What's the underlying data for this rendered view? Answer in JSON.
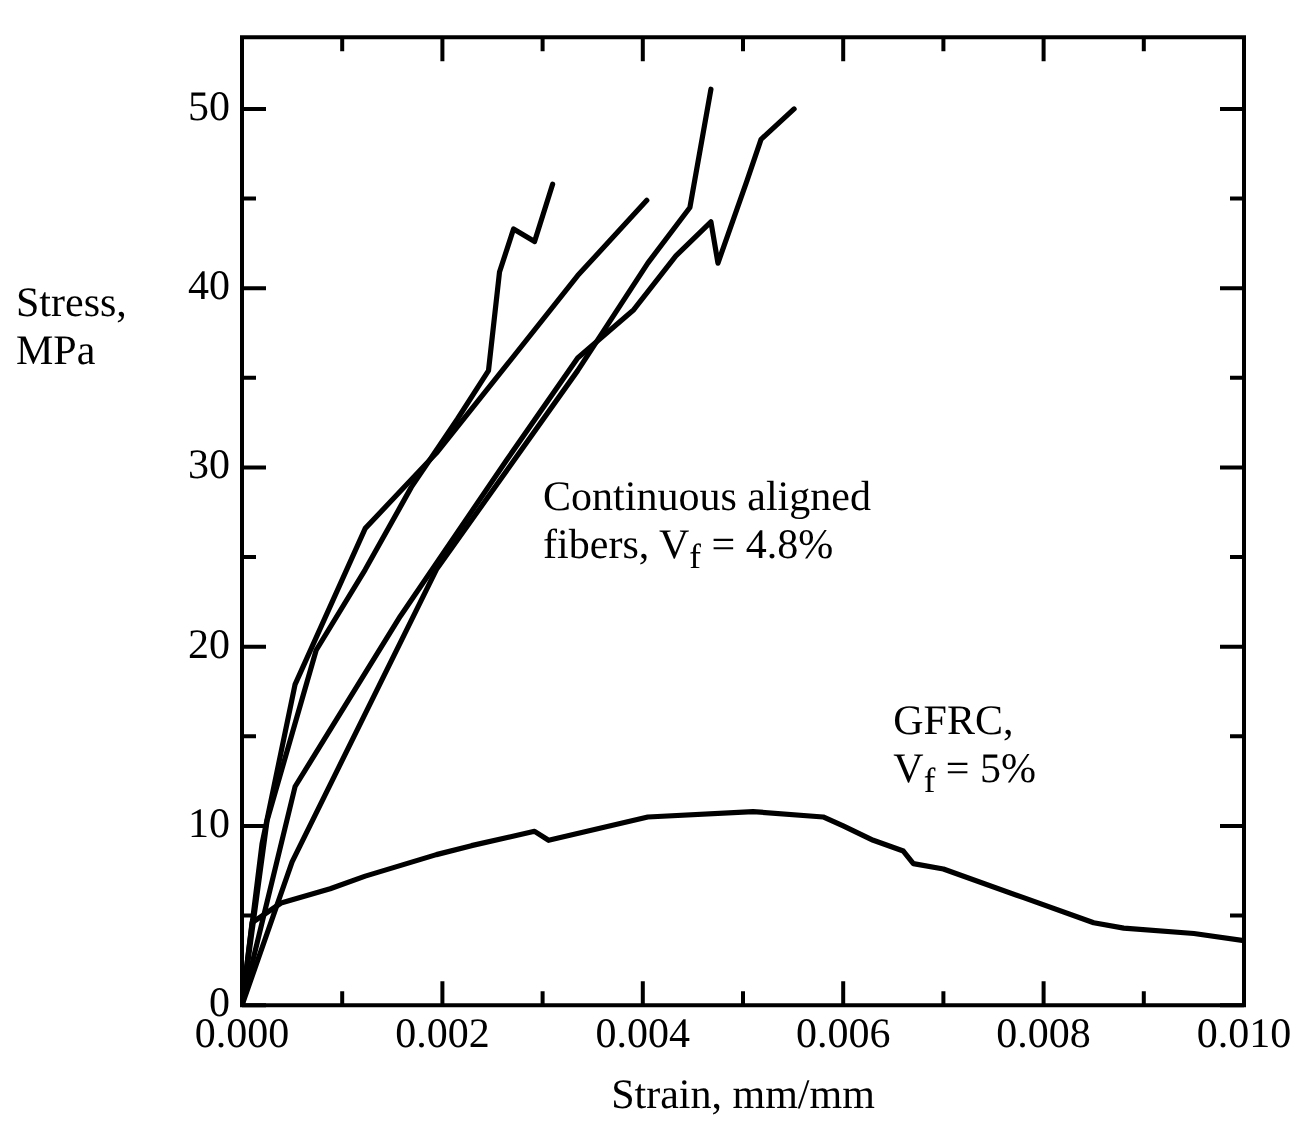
{
  "chart_data": {
    "type": "line",
    "xlabel": "Strain, mm/mm",
    "ylabel": "Stress, MPa",
    "annotations": [
      "Continuous aligned fibers, V$_{f}$ = 4.8%",
      "GFRC, V$_{f}$ = 5%"
    ],
    "xlim": [
      0,
      0.01
    ],
    "ylim": [
      0,
      54
    ],
    "xticks": [
      {
        "value": 0,
        "label": "0.000"
      },
      {
        "value": 0.001,
        "label": null
      },
      {
        "value": 0.002,
        "label": "0.002"
      },
      {
        "value": 0.003,
        "label": null
      },
      {
        "value": 0.004,
        "label": "0.004"
      },
      {
        "value": 0.005,
        "label": null
      },
      {
        "value": 0.006,
        "label": "0.006"
      },
      {
        "value": 0.007,
        "label": null
      },
      {
        "value": 0.008,
        "label": "0.008"
      },
      {
        "value": 0.009,
        "label": null
      },
      {
        "value": 0.01,
        "label": "0.010"
      }
    ],
    "yticks": [
      0,
      {
        "value": 5,
        "label": null
      },
      10,
      {
        "value": 15,
        "label": null
      },
      20,
      {
        "value": 25,
        "label": null
      },
      30,
      {
        "value": 35,
        "label": null
      },
      40,
      {
        "value": 45,
        "label": null
      },
      50
    ],
    "grid": false,
    "legend": false,
    "marker": "none",
    "line_style": "solid",
    "series": [
      {
        "color": "#000000",
        "x": [
          0,
          0.00025,
          0.00074,
          0.00123,
          0.00158,
          0.00169,
          0.00215,
          0.00246,
          0.00257,
          0.00271,
          0.00292,
          0.0031
        ],
        "values": [
          0,
          10.3,
          19.8,
          24.3,
          27.8,
          28.9,
          32.7,
          35.4,
          40.9,
          43.3,
          42.6,
          45.8
        ]
      },
      {
        "color": "#000000",
        "x": [
          0,
          0.0002,
          0.00053,
          0.00123,
          0.00194,
          0.00264,
          0.00335,
          0.00404
        ],
        "values": [
          0,
          9,
          17.9,
          26.6,
          30.8,
          35.7,
          40.7,
          44.9
        ]
      },
      {
        "color": "#000000",
        "x": [
          0,
          0.00053,
          0.00158,
          0.00264,
          0.00335,
          0.00391,
          0.00433,
          0.00468,
          0.00475,
          0.00504,
          0.00518,
          0.00551
        ],
        "values": [
          0,
          12.2,
          21.7,
          30.4,
          36.1,
          38.8,
          41.8,
          43.7,
          41.4,
          46,
          48.3,
          50
        ]
      },
      {
        "color": "#000000",
        "x": [
          0,
          0.0005,
          0.00194,
          0.00335,
          0.00405,
          0.00447,
          0.00468
        ],
        "values": [
          0,
          8,
          24.3,
          35.4,
          41.4,
          44.5,
          51.1
        ]
      },
      {
        "color": "#000000",
        "x": [
          0,
          0.0001,
          0.00039,
          0.00088,
          0.00123,
          0.00194,
          0.00229,
          0.00292,
          0.00306,
          0.00405,
          0.0051,
          0.0058,
          0.006,
          0.0063,
          0.0066,
          0.0067,
          0.007,
          0.0078,
          0.0085,
          0.0088,
          0.0095,
          0.01
        ],
        "values": [
          0,
          4.6,
          5.7,
          6.5,
          7.2,
          8.4,
          8.9,
          9.7,
          9.2,
          10.5,
          10.8,
          10.5,
          10,
          9.2,
          8.6,
          7.9,
          7.6,
          6,
          4.6,
          4.3,
          4,
          3.6
        ]
      }
    ]
  }
}
